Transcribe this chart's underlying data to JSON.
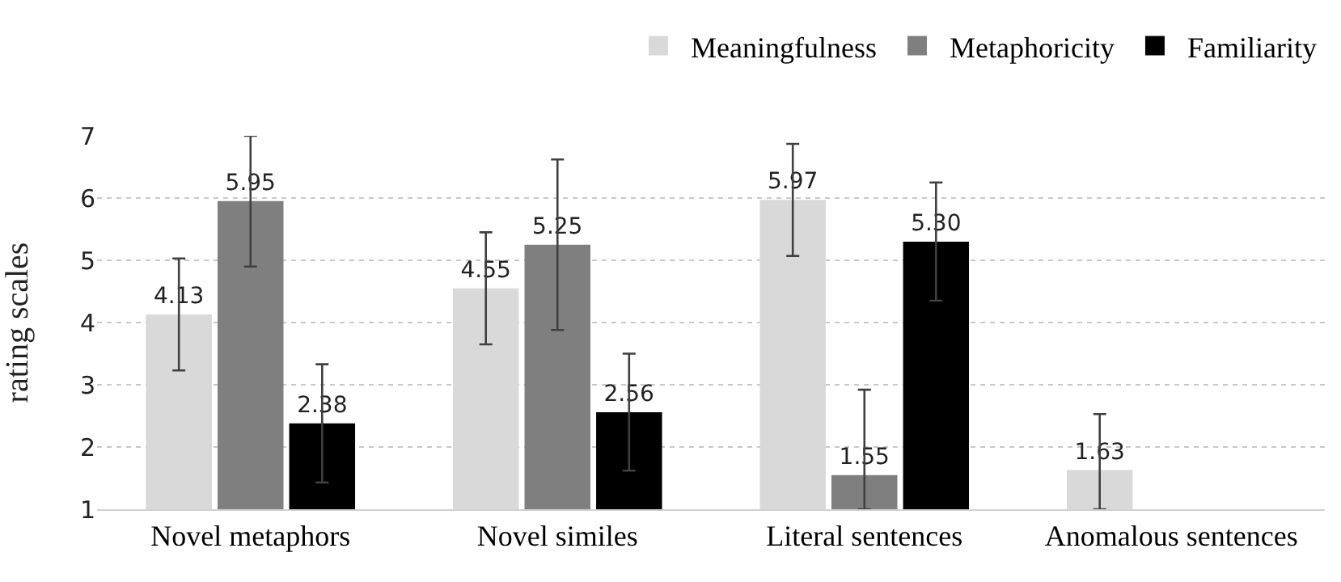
{
  "chart_data": {
    "type": "bar",
    "ylabel": "rating scales",
    "categories": [
      "Novel metaphors",
      "Novel similes",
      "Literal sentences",
      "Anomalous sentences"
    ],
    "series": [
      {
        "name": "Meaningfulness",
        "color": "#d9d9d9",
        "values": [
          4.13,
          4.55,
          5.97,
          1.63
        ],
        "value_labels": [
          "4.13",
          "4.55",
          "5.97",
          "1.63"
        ],
        "errors": [
          0.9,
          0.9,
          0.9,
          [
            1,
            2.53
          ]
        ]
      },
      {
        "name": "Metaphoricity",
        "color": "#7f7f7f",
        "values": [
          5.95,
          5.25,
          1.55,
          null
        ],
        "value_labels": [
          "5.95",
          "5.25",
          "1.55",
          null
        ],
        "errors": [
          1.05,
          1.37,
          [
            1,
            2.92
          ],
          null
        ]
      },
      {
        "name": "Familiarity",
        "color": "#000000",
        "values": [
          2.38,
          2.56,
          5.3,
          null
        ],
        "value_labels": [
          "2.38",
          "2.56",
          "5.30",
          null
        ],
        "errors": [
          0.95,
          0.94,
          0.95,
          null
        ]
      }
    ],
    "ylim": [
      1,
      7
    ],
    "yticks": [
      1,
      2,
      3,
      4,
      5,
      6,
      7
    ],
    "grid": "y",
    "legend": "top right"
  }
}
